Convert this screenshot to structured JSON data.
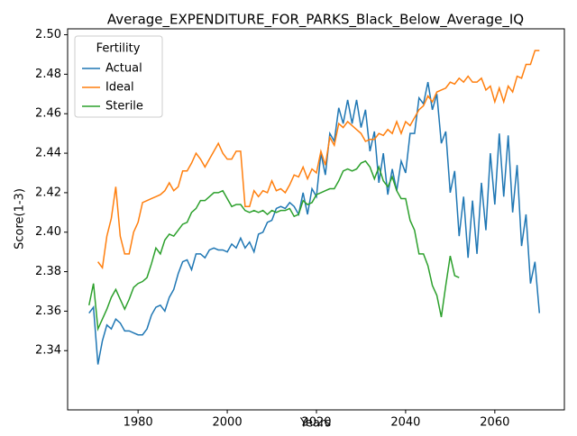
{
  "chart_data": {
    "type": "line",
    "title": "Average_EXPENDITURE_FOR_PARKS_Black_Below_Average_IQ",
    "xlabel": "Years",
    "ylabel": "Score(1-3)",
    "legend_title": "Fertility",
    "legend": "upper left",
    "xlim": [
      1964.2,
      2075.6
    ],
    "ylim": [
      2.31,
      2.503
    ],
    "xticks": [
      1980,
      2000,
      2020,
      2040,
      2060
    ],
    "yticks": [
      2.34,
      2.36,
      2.38,
      {
        "value": 2.4,
        "label": "2.40"
      },
      2.42,
      2.44,
      2.46,
      2.48,
      {
        "value": 2.5,
        "label": "2.50"
      }
    ],
    "x": [
      1969,
      1970,
      1971,
      1972,
      1973,
      1974,
      1975,
      1976,
      1977,
      1978,
      1979,
      1980,
      1981,
      1982,
      1983,
      1984,
      1985,
      1986,
      1987,
      1988,
      1989,
      1990,
      1991,
      1992,
      1993,
      1994,
      1995,
      1996,
      1997,
      1998,
      1999,
      2000,
      2001,
      2002,
      2003,
      2004,
      2005,
      2006,
      2007,
      2008,
      2009,
      2010,
      2011,
      2012,
      2013,
      2014,
      2015,
      2016,
      2017,
      2018,
      2019,
      2020,
      2021,
      2022,
      2023,
      2024,
      2025,
      2026,
      2027,
      2028,
      2029,
      2030,
      2031,
      2032,
      2033,
      2034,
      2035,
      2036,
      2037,
      2038,
      2039,
      2040,
      2041,
      2042,
      2043,
      2044,
      2045,
      2046,
      2047,
      2048,
      2049,
      2050,
      2051,
      2052,
      2053,
      2054,
      2055,
      2056,
      2057,
      2058,
      2059,
      2060,
      2061,
      2062,
      2063,
      2064,
      2065,
      2066,
      2067,
      2068,
      2069,
      2070
    ],
    "series": [
      {
        "name": "Actual",
        "color": "#1f77b4",
        "values": [
          2.359,
          2.362,
          2.333,
          2.345,
          2.353,
          2.351,
          2.356,
          2.354,
          2.35,
          2.35,
          2.349,
          2.348,
          2.348,
          2.351,
          2.358,
          2.362,
          2.363,
          2.36,
          2.367,
          2.371,
          2.379,
          2.385,
          2.386,
          2.381,
          2.389,
          2.389,
          2.387,
          2.391,
          2.392,
          2.391,
          2.391,
          2.39,
          2.394,
          2.392,
          2.397,
          2.392,
          2.395,
          2.39,
          2.399,
          2.4,
          2.405,
          2.406,
          2.412,
          2.413,
          2.412,
          2.415,
          2.413,
          2.409,
          2.42,
          2.409,
          2.422,
          2.418,
          2.44,
          2.429,
          2.45,
          2.446,
          2.463,
          2.455,
          2.467,
          2.455,
          2.467,
          2.453,
          2.462,
          2.441,
          2.451,
          2.425,
          2.44,
          2.419,
          2.432,
          2.421,
          2.436,
          2.43,
          2.45,
          2.45,
          2.468,
          2.465,
          2.476,
          2.462,
          2.47,
          2.445,
          2.451,
          2.42,
          2.431,
          2.398,
          2.418,
          2.387,
          2.416,
          2.389,
          2.425,
          2.401,
          2.44,
          2.414,
          2.45,
          2.418,
          2.449,
          2.41,
          2.434,
          2.393,
          2.409,
          2.374,
          2.385,
          2.359
        ]
      },
      {
        "name": "Ideal",
        "color": "#ff7f0e",
        "values": [
          null,
          null,
          2.385,
          2.382,
          2.398,
          2.407,
          2.423,
          2.398,
          2.389,
          2.389,
          2.4,
          2.405,
          2.415,
          2.416,
          2.417,
          2.418,
          2.419,
          2.421,
          2.425,
          2.421,
          2.423,
          2.431,
          2.431,
          2.435,
          2.44,
          2.437,
          2.433,
          2.437,
          2.441,
          2.445,
          2.44,
          2.437,
          2.437,
          2.441,
          2.441,
          2.413,
          2.413,
          2.421,
          2.418,
          2.421,
          2.42,
          2.426,
          2.421,
          2.422,
          2.42,
          2.424,
          2.429,
          2.428,
          2.433,
          2.427,
          2.432,
          2.43,
          2.441,
          2.434,
          2.448,
          2.444,
          2.455,
          2.453,
          2.456,
          2.454,
          2.452,
          2.45,
          2.446,
          2.447,
          2.447,
          2.45,
          2.449,
          2.452,
          2.45,
          2.456,
          2.45,
          2.456,
          2.454,
          2.458,
          2.462,
          2.464,
          2.469,
          2.466,
          2.471,
          2.472,
          2.473,
          2.476,
          2.475,
          2.478,
          2.476,
          2.479,
          2.476,
          2.476,
          2.478,
          2.472,
          2.474,
          2.466,
          2.473,
          2.466,
          2.474,
          2.471,
          2.479,
          2.478,
          2.485,
          2.485,
          2.492,
          2.492
        ]
      },
      {
        "name": "Sterile",
        "color": "#2ca02c",
        "values": [
          2.363,
          2.374,
          2.351,
          2.356,
          2.361,
          2.367,
          2.371,
          2.366,
          2.361,
          2.366,
          2.372,
          2.374,
          2.375,
          2.377,
          2.384,
          2.392,
          2.389,
          2.396,
          2.399,
          2.398,
          2.401,
          2.404,
          2.405,
          2.41,
          2.412,
          2.416,
          2.416,
          2.418,
          2.42,
          2.42,
          2.421,
          2.417,
          2.413,
          2.414,
          2.414,
          2.411,
          2.41,
          2.411,
          2.41,
          2.411,
          2.409,
          2.411,
          2.41,
          2.411,
          2.411,
          2.412,
          2.408,
          2.409,
          2.416,
          2.414,
          2.415,
          2.419,
          2.42,
          2.421,
          2.422,
          2.422,
          2.426,
          2.431,
          2.432,
          2.431,
          2.432,
          2.435,
          2.436,
          2.433,
          2.427,
          2.433,
          2.426,
          2.423,
          2.428,
          2.421,
          2.417,
          2.417,
          2.406,
          2.401,
          2.389,
          2.389,
          2.383,
          2.373,
          2.368,
          2.357,
          2.373,
          2.388,
          2.378,
          2.377,
          null,
          null,
          null,
          null,
          null,
          null,
          null,
          null,
          null,
          null,
          null,
          null,
          null,
          null,
          null,
          null,
          null,
          null
        ]
      }
    ]
  }
}
